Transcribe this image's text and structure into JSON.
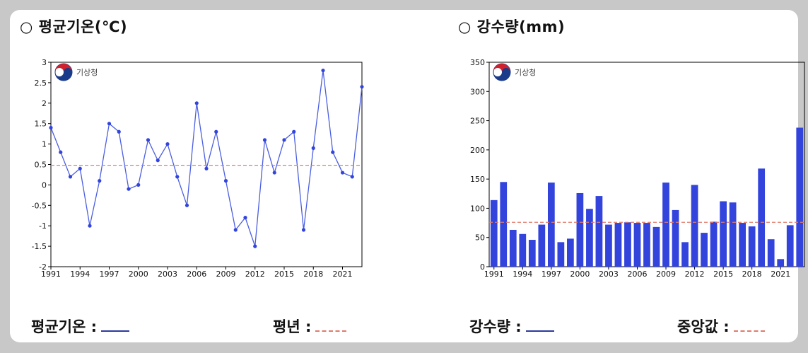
{
  "left_panel": {
    "title": "○ 평균기온(℃)",
    "legend_series": "평균기온 :",
    "legend_ref": "평년 :"
  },
  "right_panel": {
    "title": "○ 강수량(mm)",
    "legend_series": "강수량 :",
    "legend_ref": "중앙값 :"
  },
  "logo_text": "기상청",
  "colors": {
    "series": "#3344dd",
    "reference": "#e07a6a",
    "legend_line": "#2b3a9e"
  },
  "chart_data": [
    {
      "type": "line",
      "x": [
        1991,
        1992,
        1993,
        1994,
        1995,
        1996,
        1997,
        1998,
        1999,
        2000,
        2001,
        2002,
        2003,
        2004,
        2005,
        2006,
        2007,
        2008,
        2009,
        2010,
        2011,
        2012,
        2013,
        2014,
        2015,
        2016,
        2017,
        2018,
        2019,
        2020,
        2021,
        2022,
        2023
      ],
      "series": [
        {
          "values": [
            1.4,
            0.8,
            0.2,
            0.4,
            -1.0,
            0.1,
            1.5,
            1.3,
            -0.1,
            0.0,
            1.1,
            0.6,
            1.0,
            0.2,
            -0.5,
            2.0,
            0.4,
            1.3,
            0.1,
            -1.1,
            -0.8,
            -1.5,
            1.1,
            0.3,
            1.1,
            1.3,
            -1.1,
            0.9,
            2.8,
            0.8,
            0.3,
            0.2,
            2.4
          ]
        }
      ],
      "reference_line": 0.48,
      "ylim": [
        -2,
        3
      ],
      "yticks": [
        -2,
        -1.5,
        -1,
        -0.5,
        0,
        0.5,
        1,
        1.5,
        2,
        2.5,
        3
      ],
      "ytick_labels": [
        "-2",
        "-1.5",
        "-1",
        "-0.5",
        "0",
        "0.5",
        "1",
        "1.5",
        "2",
        "2.5",
        "3"
      ],
      "xticks": [
        1991,
        1994,
        1997,
        2000,
        2003,
        2006,
        2009,
        2012,
        2015,
        2018,
        2021
      ],
      "xtick_labels": [
        "1991",
        "1994",
        "1997",
        "2000",
        "2003",
        "2006",
        "2009",
        "2012",
        "2015",
        "2018",
        "2021"
      ]
    },
    {
      "type": "bar",
      "x": [
        1991,
        1992,
        1993,
        1994,
        1995,
        1996,
        1997,
        1998,
        1999,
        2000,
        2001,
        2002,
        2003,
        2004,
        2005,
        2006,
        2007,
        2008,
        2009,
        2010,
        2011,
        2012,
        2013,
        2014,
        2015,
        2016,
        2017,
        2018,
        2019,
        2020,
        2021,
        2022,
        2023
      ],
      "series": [
        {
          "values": [
            114,
            145,
            63,
            56,
            46,
            72,
            144,
            42,
            48,
            126,
            99,
            121,
            72,
            75,
            76,
            75,
            75,
            68,
            144,
            97,
            42,
            140,
            58,
            77,
            112,
            110,
            75,
            69,
            168,
            47,
            13,
            71,
            238
          ]
        }
      ],
      "reference_line": 76,
      "ylim": [
        0,
        350
      ],
      "yticks": [
        0,
        50,
        100,
        150,
        200,
        250,
        300,
        350
      ],
      "ytick_labels": [
        "0",
        "50",
        "100",
        "150",
        "200",
        "250",
        "300",
        "350"
      ],
      "xticks": [
        1991,
        1994,
        1997,
        2000,
        2003,
        2006,
        2009,
        2012,
        2015,
        2018,
        2021
      ],
      "xtick_labels": [
        "1991",
        "1994",
        "1997",
        "2000",
        "2003",
        "2006",
        "2009",
        "2012",
        "2015",
        "2018",
        "2021"
      ]
    }
  ]
}
